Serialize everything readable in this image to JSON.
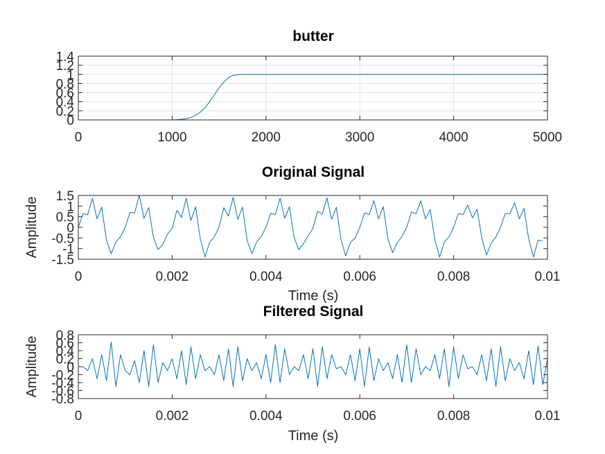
{
  "chart_data": [
    {
      "type": "line",
      "title": "butter",
      "xlabel": "",
      "ylabel": "",
      "xlim": [
        0,
        5000
      ],
      "ylim": [
        0,
        1.4
      ],
      "x_ticks": [
        "0",
        "1000",
        "2000",
        "3000",
        "4000",
        "5000"
      ],
      "y_ticks": [
        "0",
        "0.2",
        "0.4",
        "0.6",
        "0.8",
        "1",
        "1.2",
        "1.4"
      ],
      "grid": true,
      "series": [
        {
          "color": "#0072bd",
          "x": [
            0,
            1000,
            1050,
            1100,
            1150,
            1200,
            1250,
            1300,
            1350,
            1400,
            1450,
            1500,
            1550,
            1600,
            1650,
            1700,
            1750,
            1800,
            2000,
            3000,
            4000,
            5000
          ],
          "y": [
            0,
            0,
            0.005,
            0.015,
            0.03,
            0.055,
            0.1,
            0.17,
            0.27,
            0.4,
            0.55,
            0.7,
            0.83,
            0.93,
            0.98,
            0.995,
            1.0,
            1.0,
            1.0,
            1.0,
            1.0,
            1.0
          ]
        }
      ]
    },
    {
      "type": "line",
      "title": "Original Signal",
      "xlabel": "Time (s)",
      "ylabel": "Amplitude",
      "xlim": [
        0,
        0.01
      ],
      "ylim": [
        -1.5,
        1.5
      ],
      "x_ticks": [
        "0",
        "0.002",
        "0.004",
        "0.006",
        "0.008",
        "0.01"
      ],
      "y_ticks": [
        "-1.5",
        "-1",
        "-0.5",
        "0",
        "0.5",
        "1",
        "1.5"
      ],
      "grid": false,
      "series": [
        {
          "color": "#0072bd",
          "x_start": 0,
          "x_step": 0.0001,
          "values": [
            0,
            0.65,
            0.59,
            1.36,
            0.4,
            0.95,
            -0.6,
            -1.24,
            -0.69,
            -0.44,
            0,
            0.7,
            0.68,
            1.5,
            0.42,
            0.93,
            -0.46,
            -1.05,
            -0.8,
            -0.32,
            -0.06,
            0.8,
            0.47,
            1.38,
            0.32,
            0.96,
            -0.54,
            -1.4,
            -0.7,
            -0.45,
            0.02,
            0.92,
            0.53,
            1.41,
            0.38,
            0.95,
            -0.63,
            -1.23,
            -0.69,
            -0.42,
            0,
            0.66,
            0.6,
            1.37,
            0.43,
            0.97,
            -0.48,
            -1.05,
            -0.76,
            -0.4,
            -0.05,
            0.76,
            0.62,
            1.39,
            0.37,
            0.95,
            -0.6,
            -1.34,
            -0.71,
            -0.5,
            0,
            0.68,
            0.6,
            1.25,
            0.4,
            0.97,
            -0.54,
            -1.19,
            -0.72,
            -0.42,
            0,
            0.72,
            0.64,
            1.25,
            0.4,
            0.84,
            -0.59,
            -1.4,
            -0.7,
            -0.45,
            0,
            0.65,
            0.6,
            1.05,
            0.45,
            0.85,
            -0.5,
            -1.3,
            -0.75,
            -0.45,
            0,
            0.65,
            0.65,
            1.15,
            0.4,
            0.9,
            -0.55,
            -1.4,
            -0.6,
            -0.65
          ]
        }
      ]
    },
    {
      "type": "line",
      "title": "Filtered Signal",
      "xlabel": "Time (s)",
      "ylabel": "Amplitude",
      "xlim": [
        0,
        0.01
      ],
      "ylim": [
        -0.8,
        0.8
      ],
      "x_ticks": [
        "0",
        "0.002",
        "0.004",
        "0.006",
        "0.008",
        "0.01"
      ],
      "y_ticks": [
        "-0.8",
        "-0.6",
        "-0.4",
        "-0.2",
        "0",
        "0.2",
        "0.4",
        "0.6",
        "0.8"
      ],
      "grid": false,
      "series": [
        {
          "color": "#0072bd",
          "x_start": 0,
          "x_step": 0.0001,
          "values": [
            0,
            0.0,
            -0.1,
            0.2,
            -0.3,
            0.3,
            -0.35,
            0.62,
            -0.5,
            0.3,
            -0.1,
            -0.2,
            0.15,
            -0.4,
            0.4,
            -0.5,
            0.55,
            -0.4,
            0.1,
            -0.1,
            0.2,
            -0.3,
            0.4,
            -0.45,
            0.5,
            -0.3,
            0.3,
            -0.1,
            0.0,
            -0.2,
            0.3,
            -0.35,
            0.45,
            -0.5,
            0.5,
            -0.35,
            0.2,
            -0.1,
            0.1,
            -0.3,
            0.3,
            -0.4,
            0.55,
            -0.4,
            0.45,
            -0.2,
            0.0,
            -0.1,
            0.3,
            -0.3,
            0.45,
            -0.5,
            0.5,
            -0.3,
            0.3,
            -0.05,
            0.0,
            -0.2,
            0.3,
            -0.35,
            0.45,
            -0.5,
            0.5,
            -0.35,
            0.2,
            -0.1,
            0.1,
            -0.3,
            0.3,
            -0.4,
            0.55,
            -0.4,
            0.45,
            -0.2,
            0.0,
            -0.1,
            0.3,
            -0.3,
            0.45,
            -0.5,
            0.5,
            -0.3,
            0.3,
            -0.05,
            0.0,
            -0.2,
            0.3,
            -0.35,
            0.45,
            -0.5,
            0.5,
            -0.35,
            0.2,
            -0.1,
            0.1,
            -0.3,
            0.4,
            -0.45,
            0.52,
            -0.45,
            0.2
          ]
        }
      ]
    }
  ]
}
